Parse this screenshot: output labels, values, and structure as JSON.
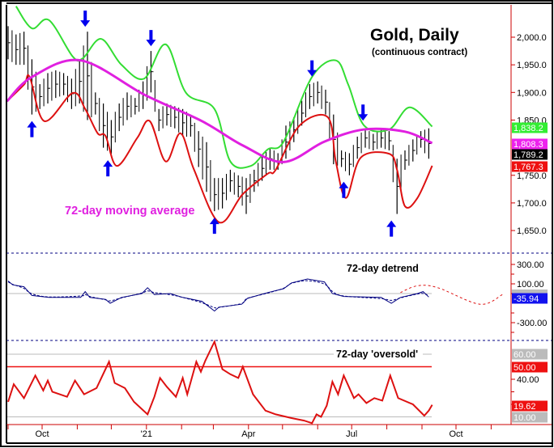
{
  "chart_data": {
    "type": "line",
    "title": "Gold, Daily",
    "subtitle": "(continuous contract)",
    "x_tick_labels": [
      {
        "label": "Oct",
        "date": "2020-10-01"
      },
      {
        "label": "'21",
        "date": "2021-01-01"
      },
      {
        "label": "Apr",
        "date": "2021-04-01"
      },
      {
        "label": "Jul",
        "date": "2021-07-01"
      },
      {
        "label": "Oct",
        "date": "2021-10-01"
      }
    ],
    "price_panel": {
      "ylim": [
        1620,
        2040
      ],
      "y_ticks": [
        "2,000.0",
        "1,950.0",
        "1,900.0",
        "1,850.0",
        "1,750.0",
        "1,700.0",
        "1,650.0"
      ],
      "y_tick_values": [
        2000,
        1950,
        1900,
        1850,
        1750,
        1700,
        1650
      ],
      "annotation": "72-day moving average",
      "bars_weekly": {
        "dates": [
          "2020-09-01",
          "2020-09-08",
          "2020-09-15",
          "2020-09-22",
          "2020-09-29",
          "2020-10-06",
          "2020-10-13",
          "2020-10-20",
          "2020-10-27",
          "2020-11-03",
          "2020-11-10",
          "2020-11-17",
          "2020-11-24",
          "2020-12-01",
          "2020-12-08",
          "2020-12-15",
          "2020-12-22",
          "2020-12-29",
          "2021-01-05",
          "2021-01-12",
          "2021-01-19",
          "2021-01-26",
          "2021-02-02",
          "2021-02-09",
          "2021-02-16",
          "2021-02-23",
          "2021-03-02",
          "2021-03-09",
          "2021-03-16",
          "2021-03-23",
          "2021-03-30",
          "2021-04-06",
          "2021-04-13",
          "2021-04-20",
          "2021-04-27",
          "2021-05-04",
          "2021-05-11",
          "2021-05-18",
          "2021-05-25",
          "2021-06-01",
          "2021-06-08",
          "2021-06-15",
          "2021-06-22",
          "2021-06-29",
          "2021-07-06",
          "2021-07-13",
          "2021-07-20",
          "2021-07-27",
          "2021-08-03",
          "2021-08-10",
          "2021-08-17",
          "2021-08-24",
          "2021-08-31",
          "2021-09-07"
        ],
        "high": [
          2020,
          2005,
          2010,
          1960,
          1915,
          1935,
          1940,
          1935,
          1925,
          1960,
          2010,
          1900,
          1880,
          1850,
          1880,
          1900,
          1890,
          1920,
          1975,
          1870,
          1880,
          1875,
          1870,
          1860,
          1830,
          1810,
          1745,
          1745,
          1760,
          1750,
          1745,
          1760,
          1785,
          1800,
          1790,
          1840,
          1855,
          1885,
          1915,
          1920,
          1905,
          1860,
          1795,
          1790,
          1820,
          1835,
          1825,
          1835,
          1830,
          1780,
          1795,
          1815,
          1830,
          1835
        ],
        "low": [
          1960,
          1950,
          1950,
          1860,
          1870,
          1880,
          1890,
          1895,
          1870,
          1880,
          1850,
          1860,
          1800,
          1789,
          1830,
          1850,
          1860,
          1870,
          1900,
          1830,
          1840,
          1835,
          1820,
          1820,
          1765,
          1720,
          1685,
          1690,
          1720,
          1710,
          1680,
          1720,
          1740,
          1760,
          1760,
          1780,
          1810,
          1840,
          1870,
          1880,
          1860,
          1770,
          1765,
          1750,
          1780,
          1800,
          1795,
          1800,
          1795,
          1680,
          1760,
          1775,
          1800,
          1780
        ]
      },
      "series": [
        {
          "name": "72-day moving average",
          "color": "#e020e0",
          "dates": [
            "2020-08-31",
            "2020-09-22",
            "2020-11-04",
            "2020-12-31",
            "2021-02-19",
            "2021-03-27",
            "2021-05-02",
            "2021-06-07",
            "2021-07-12",
            "2021-08-17",
            "2021-09-10"
          ],
          "values": [
            1884,
            1928,
            1958,
            1895,
            1848,
            1804,
            1774,
            1811,
            1833,
            1829,
            1808.3
          ]
        },
        {
          "color": "#33dd33",
          "dates": [
            "2020-09-08",
            "2020-09-22",
            "2020-10-07",
            "2020-10-28",
            "2020-11-06",
            "2020-11-22",
            "2020-12-10",
            "2020-12-30",
            "2021-01-18",
            "2021-02-05",
            "2021-03-02",
            "2021-03-16",
            "2021-04-03",
            "2021-04-18",
            "2021-05-02",
            "2021-05-27",
            "2021-06-17",
            "2021-06-28",
            "2021-07-12",
            "2021-08-03",
            "2021-08-21",
            "2021-09-10"
          ],
          "values": [
            2056,
            2016,
            2031,
            1965,
            1962,
            1997,
            1950,
            1925,
            1987,
            1899,
            1870,
            1775,
            1767,
            1797,
            1811,
            1928,
            1958,
            1914,
            1840,
            1833,
            1873,
            1838.2
          ]
        },
        {
          "color": "#dd1111",
          "dates": [
            "2020-08-31",
            "2020-09-15",
            "2020-09-20",
            "2020-10-03",
            "2020-10-28",
            "2020-11-08",
            "2020-11-19",
            "2020-11-26",
            "2020-12-06",
            "2020-12-24",
            "2021-01-04",
            "2021-01-18",
            "2021-01-31",
            "2021-02-12",
            "2021-03-06",
            "2021-03-27",
            "2021-04-18",
            "2021-04-25",
            "2021-05-16",
            "2021-06-10",
            "2021-06-17",
            "2021-06-26",
            "2021-07-09",
            "2021-08-03",
            "2021-08-10",
            "2021-08-17",
            "2021-08-28",
            "2021-09-10"
          ],
          "values": [
            1884,
            1914,
            1928,
            1848,
            1899,
            1870,
            1826,
            1821,
            1767,
            1818,
            1848,
            1775,
            1826,
            1760,
            1665,
            1716,
            1753,
            1760,
            1840,
            1855,
            1775,
            1709,
            1782,
            1789,
            1760,
            1694,
            1709,
            1767.3
          ]
        }
      ],
      "arrows": [
        {
          "dir": "down",
          "date": "2020-11-08",
          "price": 2010
        },
        {
          "dir": "down",
          "date": "2021-01-05",
          "price": 1975
        },
        {
          "dir": "down",
          "date": "2021-05-27",
          "price": 1920
        },
        {
          "dir": "down",
          "date": "2021-07-11",
          "price": 1840
        },
        {
          "dir": "up",
          "date": "2020-09-22",
          "price": 1860
        },
        {
          "dir": "up",
          "date": "2020-11-28",
          "price": 1789
        },
        {
          "dir": "up",
          "date": "2021-03-02",
          "price": 1685
        },
        {
          "dir": "up",
          "date": "2021-06-24",
          "price": 1750
        },
        {
          "dir": "up",
          "date": "2021-08-05",
          "price": 1680
        }
      ],
      "value_labels": [
        {
          "text": "1,838.2",
          "value": 1838.2,
          "bg": "#33ee33",
          "fg": "#ffffff"
        },
        {
          "text": "1,808.3",
          "value": 1808.3,
          "bg": "#ee22ee",
          "fg": "#ffffff"
        },
        {
          "text": "1,789.2",
          "value": 1789.2,
          "bg": "#000000",
          "fg": "#ffffff"
        },
        {
          "text": "1,767.3",
          "value": 1767.3,
          "bg": "#ee1111",
          "fg": "#ffffff"
        }
      ]
    },
    "detrend_panel": {
      "label": "72-day detrend",
      "ylim": [
        -400,
        400
      ],
      "y_ticks": [
        "300.00",
        "100.00",
        "-300.00"
      ],
      "y_tick_values": [
        300,
        100,
        -300
      ],
      "series": {
        "color": "#000080",
        "dates": [
          "2020-09-01",
          "2020-09-05",
          "2020-09-15",
          "2020-09-22",
          "2020-10-07",
          "2020-11-04",
          "2020-11-08",
          "2020-11-12",
          "2020-11-26",
          "2020-11-30",
          "2020-12-10",
          "2020-12-28",
          "2021-01-02",
          "2021-01-08",
          "2021-01-22",
          "2021-02-02",
          "2021-02-19",
          "2021-03-02",
          "2021-03-06",
          "2021-03-26",
          "2021-03-31",
          "2021-04-18",
          "2021-05-02",
          "2021-05-09",
          "2021-05-23",
          "2021-06-07",
          "2021-06-14",
          "2021-06-24",
          "2021-07-27",
          "2021-08-05",
          "2021-08-13",
          "2021-08-28",
          "2021-09-02",
          "2021-09-07"
        ],
        "values": [
          130,
          90,
          70,
          -20,
          -40,
          -40,
          20,
          -40,
          -60,
          -100,
          -40,
          0,
          60,
          -10,
          0,
          -40,
          -80,
          -180,
          -140,
          -110,
          -50,
          10,
          50,
          110,
          150,
          120,
          0,
          -30,
          -40,
          -100,
          -40,
          0,
          20,
          -35.94
        ]
      },
      "projection": {
        "color": "#dd1111",
        "dates": [
          "2021-08-13",
          "2021-08-28",
          "2021-09-15",
          "2021-10-22",
          "2021-11-11"
        ],
        "values": [
          10,
          80,
          60,
          -110,
          -10
        ]
      },
      "value_label": {
        "text": "-35.94",
        "bg": "#1111ee",
        "fg": "#ffffff"
      }
    },
    "oversold_panel": {
      "label": "72-day 'oversold'",
      "ylim": [
        0,
        75
      ],
      "y_ticks": [
        "40.00"
      ],
      "y_tick_values": [
        40
      ],
      "reference_lines": [
        {
          "value": 60,
          "text": "60.00",
          "color": "#bbbbbb"
        },
        {
          "value": 50,
          "text": "50.00",
          "color": "#ee1111"
        },
        {
          "value": 10,
          "text": "10.00",
          "color": "#bbbbbb"
        }
      ],
      "series": {
        "color": "#dd1111",
        "dates": [
          "2020-09-01",
          "2020-09-06",
          "2020-09-15",
          "2020-09-25",
          "2020-10-02",
          "2020-10-06",
          "2020-10-10",
          "2020-10-23",
          "2020-10-30",
          "2020-11-07",
          "2020-11-18",
          "2020-11-29",
          "2020-12-04",
          "2020-12-13",
          "2020-12-21",
          "2021-01-02",
          "2021-01-08",
          "2021-01-13",
          "2021-01-19",
          "2021-01-27",
          "2021-02-02",
          "2021-02-06",
          "2021-02-14",
          "2021-02-18",
          "2021-02-22",
          "2021-03-02",
          "2021-03-09",
          "2021-03-16",
          "2021-03-23",
          "2021-03-27",
          "2021-04-05",
          "2021-04-16",
          "2021-04-25",
          "2021-05-09",
          "2021-05-20",
          "2021-05-27",
          "2021-05-31",
          "2021-06-04",
          "2021-06-09",
          "2021-06-14",
          "2021-06-19",
          "2021-06-24",
          "2021-07-03",
          "2021-07-07",
          "2021-07-14",
          "2021-07-21",
          "2021-07-28",
          "2021-08-04",
          "2021-08-11",
          "2021-08-24",
          "2021-09-03",
          "2021-09-07",
          "2021-09-10"
        ],
        "values": [
          22,
          36,
          25,
          43,
          31,
          39,
          30,
          26,
          39,
          28,
          33,
          54,
          37,
          33,
          22,
          12,
          26,
          41,
          34,
          26,
          41,
          28,
          54,
          46,
          55,
          70,
          48,
          44,
          41,
          50,
          28,
          15,
          12,
          9,
          7,
          5,
          12,
          10,
          19,
          38,
          28,
          43,
          25,
          28,
          21,
          25,
          23,
          43,
          25,
          20,
          11,
          15,
          19.62
        ]
      },
      "value_label": {
        "text": "19.62",
        "bg": "#ee1111",
        "fg": "#ffffff"
      }
    }
  }
}
